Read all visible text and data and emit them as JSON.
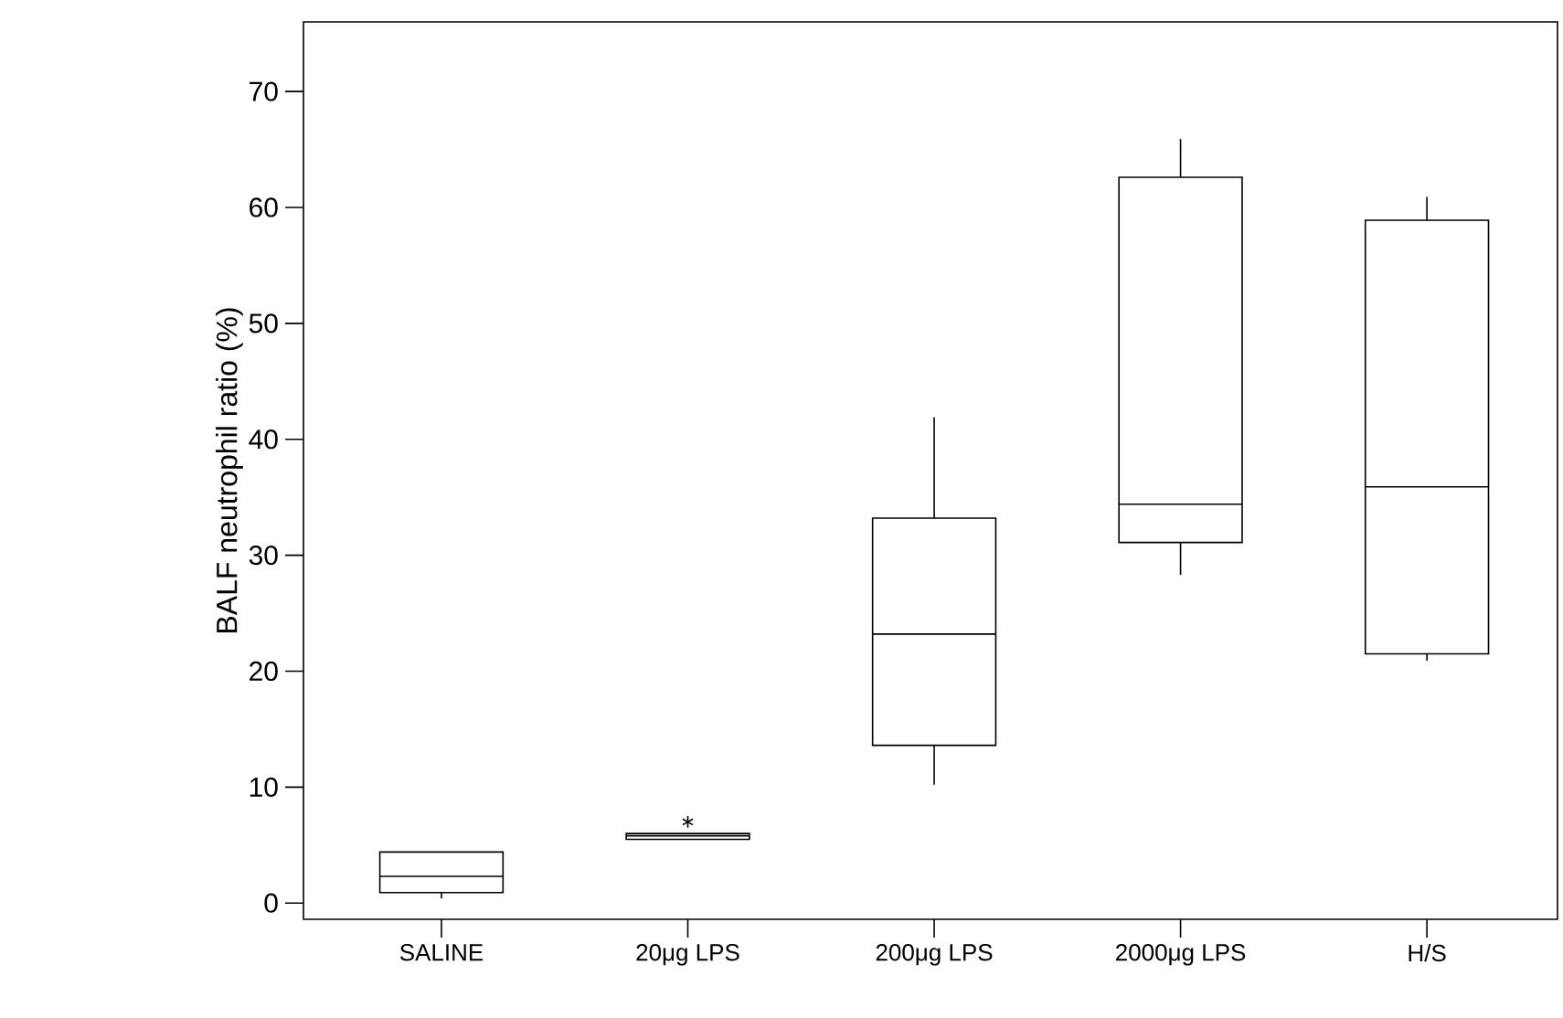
{
  "chart_data": {
    "type": "box",
    "ylabel": "BALF neutrophil ratio (%)",
    "categories": [
      "SALINE",
      "20μg LPS",
      "200μg LPS",
      "2000μg LPS",
      "H/S"
    ],
    "boxes": [
      {
        "low": 0.4,
        "q1": 0.9,
        "median": 2.3,
        "q3": 4.4,
        "high": 4.4
      },
      {
        "low": 5.5,
        "q1": 5.5,
        "median": 5.8,
        "q3": 6.0,
        "high": 6.0,
        "outliers": [
          7.0
        ]
      },
      {
        "low": 10.2,
        "q1": 13.6,
        "median": 23.2,
        "q3": 33.2,
        "high": 41.9
      },
      {
        "low": 28.3,
        "q1": 31.1,
        "median": 34.4,
        "q3": 62.6,
        "high": 65.9
      },
      {
        "low": 20.9,
        "q1": 21.5,
        "median": 35.9,
        "q3": 58.9,
        "high": 60.9
      }
    ],
    "ylim": [
      -1.4,
      76
    ],
    "yticks": [
      0,
      10,
      20,
      30,
      40,
      50,
      60,
      70
    ]
  }
}
